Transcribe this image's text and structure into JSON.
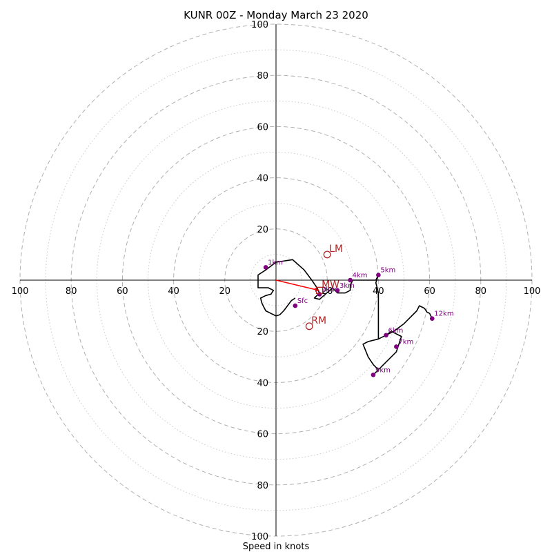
{
  "chart_data": {
    "type": "scatter",
    "subtype": "hodograph",
    "title": "KUNR 00Z - Monday March 23 2020",
    "xlabel": "Speed in knots",
    "ylabel": "",
    "xlim": [
      -100,
      100
    ],
    "ylim": [
      -100,
      100
    ],
    "major_rings": [
      20,
      40,
      60,
      80,
      100
    ],
    "minor_rings": [
      10,
      30,
      50,
      70,
      90
    ],
    "tick_values": [
      20,
      40,
      60,
      80,
      100
    ],
    "tick_labels": [
      "20",
      "40",
      "60",
      "80",
      "100"
    ],
    "grid": true,
    "colors": {
      "hodograph": "#000000",
      "markers": "#800080",
      "storm_motion": "#b22222",
      "mean_wind_vector": "#ff0000",
      "grid": "#b0b0b0"
    },
    "hodograph_trace": [
      [
        7.5,
        -7
      ],
      [
        6,
        -8
      ],
      [
        4.5,
        -10
      ],
      [
        3,
        -12
      ],
      [
        1.5,
        -13.5
      ],
      [
        0,
        -14
      ],
      [
        -2,
        -13
      ],
      [
        -4,
        -12
      ],
      [
        -5,
        -10
      ],
      [
        -5.5,
        -9
      ],
      [
        -6,
        -7
      ],
      [
        -4,
        -6
      ],
      [
        -2,
        -5.5
      ],
      [
        -1,
        -4
      ],
      [
        -3,
        -3
      ],
      [
        -7,
        -3
      ],
      [
        -7,
        -1
      ],
      [
        -7,
        2
      ],
      [
        -4,
        4
      ],
      [
        0,
        7
      ],
      [
        6.5,
        8
      ],
      [
        11,
        4
      ],
      [
        14,
        0
      ],
      [
        16,
        -3
      ],
      [
        17,
        -5
      ],
      [
        15,
        -7
      ],
      [
        17,
        -7.5
      ],
      [
        21,
        -4
      ],
      [
        22,
        -3
      ],
      [
        24,
        -5
      ],
      [
        27,
        -5
      ],
      [
        29,
        -4
      ],
      [
        29,
        -2
      ],
      [
        30,
        0
      ],
      [
        34,
        0
      ],
      [
        39,
        0
      ],
      [
        40,
        2
      ],
      [
        39,
        -1
      ],
      [
        40,
        -5
      ],
      [
        40,
        -20
      ],
      [
        40,
        -23
      ],
      [
        43,
        -21.5
      ],
      [
        45,
        -20
      ],
      [
        49,
        -22
      ],
      [
        47,
        -28
      ],
      [
        42,
        -33
      ],
      [
        38,
        -37
      ],
      [
        40,
        -35
      ],
      [
        38,
        -33
      ],
      [
        36,
        -30
      ],
      [
        34,
        -25
      ],
      [
        36,
        -24
      ],
      [
        40,
        -23
      ],
      [
        43,
        -21.5
      ],
      [
        46,
        -20
      ],
      [
        50,
        -17
      ],
      [
        55,
        -12
      ],
      [
        56,
        -10
      ],
      [
        57,
        -10.5
      ],
      [
        58,
        -11
      ],
      [
        59,
        -12.5
      ],
      [
        60,
        -13
      ],
      [
        61,
        -15
      ]
    ],
    "height_markers": [
      {
        "label": "Sfc",
        "u": 7.5,
        "v": -10
      },
      {
        "label": "1km",
        "u": -4,
        "v": 5
      },
      {
        "label": "2km",
        "u": 17,
        "v": -5.5
      },
      {
        "label": "3km",
        "u": 24,
        "v": -4
      },
      {
        "label": "4km",
        "u": 29,
        "v": 0
      },
      {
        "label": "5km",
        "u": 40,
        "v": 2
      },
      {
        "label": "6km",
        "u": 43,
        "v": -21.5
      },
      {
        "label": "7km",
        "u": 47,
        "v": -26
      },
      {
        "label": "9km",
        "u": 38,
        "v": -37
      },
      {
        "label": "12km",
        "u": 61,
        "v": -15
      }
    ],
    "storm_motions": [
      {
        "label": "LM",
        "u": 20,
        "v": 10
      },
      {
        "label": "RM",
        "u": 13,
        "v": -18
      },
      {
        "label": "MW",
        "u": 17,
        "v": -4
      }
    ],
    "mean_wind_vector": {
      "u": 17,
      "v": -4
    }
  }
}
